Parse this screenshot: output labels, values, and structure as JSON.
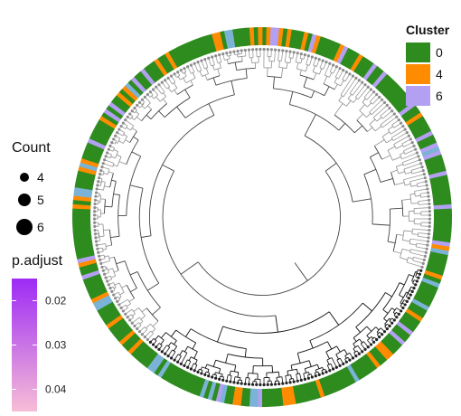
{
  "chart_data": {
    "type": "circular-dendrogram",
    "title": "",
    "cluster_legend": {
      "title": "Cluster",
      "entries": [
        {
          "label": "0",
          "color": "#2E8B1E"
        },
        {
          "label": "4",
          "color": "#FF8C00"
        },
        {
          "label": "6",
          "color": "#B3A0F2"
        }
      ]
    },
    "count_legend": {
      "title": "Count",
      "entries": [
        {
          "label": "4",
          "value": 4
        },
        {
          "label": "5",
          "value": 5
        },
        {
          "label": "6",
          "value": 6
        }
      ]
    },
    "padjust_legend": {
      "title": "p.adjust",
      "ticks": [
        {
          "label": "0.02",
          "value": 0.02
        },
        {
          "label": "0.03",
          "value": 0.03
        },
        {
          "label": "0.04",
          "value": 0.04
        }
      ],
      "range": [
        0.015,
        0.045
      ],
      "color_low": "#9D2AF5",
      "color_high": "#F7BDD6"
    },
    "ring": {
      "leaf_count": 280,
      "cluster_share": {
        "0": 0.8,
        "4": 0.1,
        "6": 0.1
      },
      "accent_line_color": "#7BB3D6"
    },
    "tree": {
      "branch_color": "#444444",
      "leaf_color": "#9a9a9a",
      "highlight_color": "#111111"
    }
  }
}
